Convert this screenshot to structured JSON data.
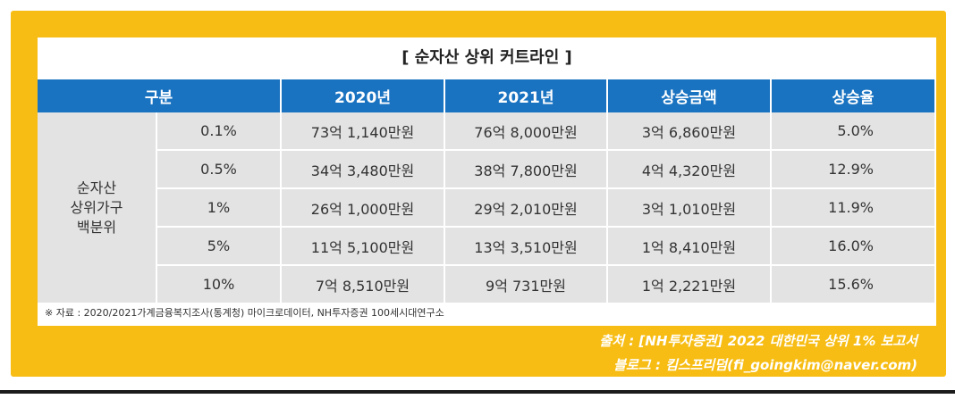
{
  "title": "[ 순자산 상위 커트라인 ]",
  "table": {
    "headers": [
      "구분",
      "2020년",
      "2021년",
      "상승금액",
      "상승율"
    ],
    "group_label_lines": [
      "순자산",
      "상위가구",
      "백분위"
    ],
    "rows": [
      {
        "pct": "0.1%",
        "y2020": "73억 1,140만원",
        "y2021": "76억 8,000만원",
        "increase": "3억 6,860만원",
        "rate": "5.0%"
      },
      {
        "pct": "0.5%",
        "y2020": "34억 3,480만원",
        "y2021": "38억 7,800만원",
        "increase": "4억 4,320만원",
        "rate": "12.9%"
      },
      {
        "pct": "1%",
        "y2020": "26억 1,000만원",
        "y2021": "29억 2,010만원",
        "increase": "3억 1,010만원",
        "rate": "11.9%"
      },
      {
        "pct": "5%",
        "y2020": "11억 5,100만원",
        "y2021": "13억 3,510만원",
        "increase": "1억 8,410만원",
        "rate": "16.0%"
      },
      {
        "pct": "10%",
        "y2020": "7억 8,510만원",
        "y2021": "9억 731만원",
        "increase": "1억 2,221만원",
        "rate": "15.6%"
      }
    ]
  },
  "note": "※ 자료 : 2020/2021가계금융복지조사(통계청) 마이크로데이터, NH투자증권 100세시대연구소",
  "source_line": "출처 : [NH투자증권] 2022 대한민국 상위 1% 보고서",
  "blog_line": "블로그 : 킴스프리덤(fi_goingkim@naver.com)",
  "colors": {
    "frame": "#f7bd14",
    "header": "#1a73c1",
    "cell": "#e3e3e3"
  }
}
